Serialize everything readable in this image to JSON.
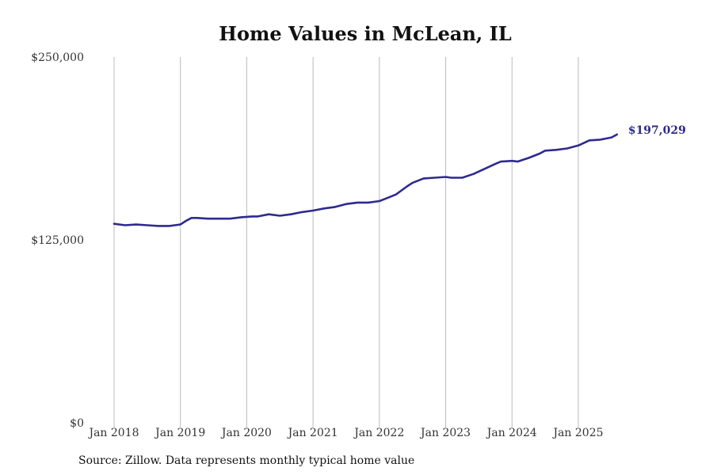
{
  "chart_data": {
    "type": "line",
    "title": "Home Values in McLean, IL",
    "xlabel": "",
    "ylabel": "",
    "ylim": [
      0,
      250000
    ],
    "y_ticks": [
      {
        "value": 0,
        "label": "$0"
      },
      {
        "value": 125000,
        "label": "$125,000"
      },
      {
        "value": 250000,
        "label": "$250,000"
      }
    ],
    "x_ticks": [
      {
        "value": "2018-01",
        "label": "Jan 2018"
      },
      {
        "value": "2019-01",
        "label": "Jan 2019"
      },
      {
        "value": "2020-01",
        "label": "Jan 2020"
      },
      {
        "value": "2021-01",
        "label": "Jan 2021"
      },
      {
        "value": "2022-01",
        "label": "Jan 2022"
      },
      {
        "value": "2023-01",
        "label": "Jan 2023"
      },
      {
        "value": "2024-01",
        "label": "Jan 2024"
      },
      {
        "value": "2025-01",
        "label": "Jan 2025"
      }
    ],
    "grid": {
      "vertical": true,
      "horizontal": false
    },
    "line_color": "#2e2a8f",
    "grid_color": "#bbbbbb",
    "end_label": "$197,029",
    "series": [
      {
        "x": [
          "2018-01",
          "2018-03",
          "2018-05",
          "2018-07",
          "2018-09",
          "2018-11",
          "2018-12",
          "2019-01",
          "2019-02",
          "2019-03",
          "2019-04",
          "2019-06",
          "2019-08",
          "2019-10",
          "2019-12",
          "2020-02",
          "2020-03",
          "2020-05",
          "2020-07",
          "2020-09",
          "2020-11",
          "2021-01",
          "2021-03",
          "2021-05",
          "2021-07",
          "2021-08",
          "2021-09",
          "2021-11",
          "2022-01",
          "2022-02",
          "2022-04",
          "2022-06",
          "2022-07",
          "2022-09",
          "2022-11",
          "2023-01",
          "2023-02",
          "2023-04",
          "2023-06",
          "2023-08",
          "2023-10",
          "2023-11",
          "2024-01",
          "2024-02",
          "2024-04",
          "2024-06",
          "2024-07",
          "2024-09",
          "2024-11",
          "2025-01",
          "2025-03",
          "2025-05",
          "2025-07",
          "2025-08"
        ],
        "values": [
          136000,
          135000,
          135500,
          135000,
          134500,
          134500,
          135000,
          135500,
          138000,
          140000,
          140000,
          139500,
          139500,
          139500,
          140500,
          141000,
          141000,
          142500,
          141500,
          142500,
          144000,
          145000,
          146500,
          147500,
          149500,
          150000,
          150500,
          150500,
          151500,
          153000,
          156000,
          161500,
          164000,
          167000,
          167500,
          168000,
          167500,
          167500,
          170000,
          173500,
          177000,
          178500,
          179000,
          178500,
          181000,
          184000,
          186000,
          186500,
          187500,
          189500,
          193000,
          193500,
          195000,
          197029
        ]
      }
    ]
  },
  "source": "Source: Zillow. Data represents monthly typical home value"
}
